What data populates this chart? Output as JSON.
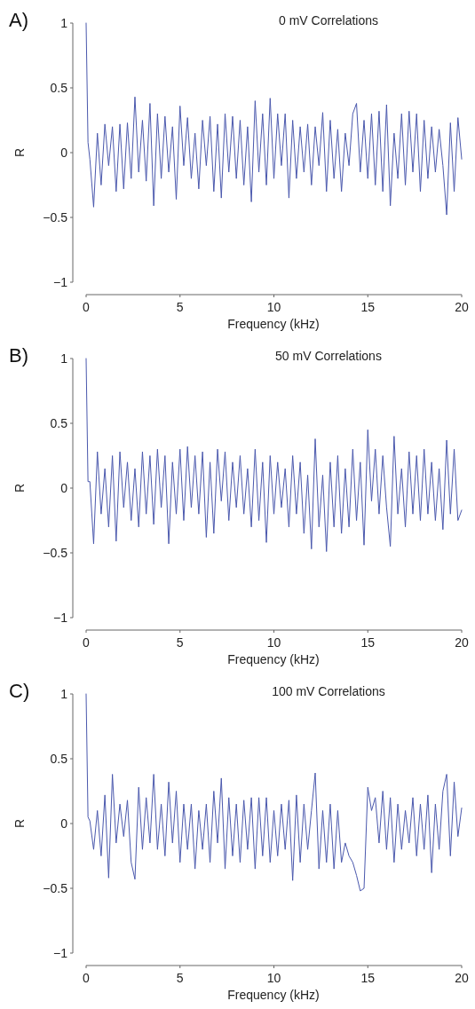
{
  "chart_data": [
    {
      "type": "line",
      "title": "0 mV Correlations",
      "xlabel": "Frequency (kHz)",
      "ylabel": "R",
      "annotations": [
        "A)"
      ],
      "x": [
        0,
        0.1,
        0.2,
        0.4,
        0.6,
        0.8,
        1,
        1.2,
        1.4,
        1.6,
        1.8,
        2,
        2.2,
        2.4,
        2.6,
        2.8,
        3,
        3.2,
        3.4,
        3.6,
        3.8,
        4,
        4.2,
        4.4,
        4.6,
        4.8,
        5,
        5.2,
        5.4,
        5.6,
        5.8,
        6,
        6.2,
        6.4,
        6.6,
        6.8,
        7,
        7.2,
        7.4,
        7.6,
        7.8,
        8,
        8.2,
        8.4,
        8.6,
        8.8,
        9,
        9.2,
        9.4,
        9.6,
        9.8,
        10,
        10.2,
        10.4,
        10.6,
        10.8,
        11,
        11.2,
        11.4,
        11.6,
        11.8,
        12,
        12.2,
        12.4,
        12.6,
        12.8,
        13,
        13.2,
        13.4,
        13.6,
        13.8,
        14,
        14.2,
        14.4,
        14.6,
        14.8,
        15,
        15.2,
        15.4,
        15.6,
        15.8,
        16,
        16.2,
        16.4,
        16.6,
        16.8,
        17,
        17.2,
        17.4,
        17.6,
        17.8,
        18,
        18.2,
        18.4,
        18.6,
        18.8,
        19,
        19.2,
        19.4,
        19.6,
        19.8,
        20
      ],
      "series": [
        {
          "color": "#4a58ad",
          "values": [
            1,
            0.08,
            -0.05,
            -0.42,
            0.15,
            -0.25,
            0.22,
            -0.1,
            0.2,
            -0.3,
            0.22,
            -0.28,
            0.23,
            -0.2,
            0.43,
            -0.15,
            0.25,
            -0.22,
            0.38,
            -0.41,
            0.3,
            -0.2,
            0.28,
            -0.15,
            0.2,
            -0.36,
            0.36,
            -0.1,
            0.27,
            -0.2,
            0.15,
            -0.28,
            0.25,
            -0.1,
            0.28,
            -0.3,
            0.22,
            -0.35,
            0.3,
            -0.15,
            0.28,
            -0.2,
            0.25,
            -0.25,
            0.2,
            -0.38,
            0.4,
            -0.15,
            0.3,
            -0.25,
            0.42,
            -0.2,
            0.3,
            -0.1,
            0.3,
            -0.35,
            0.25,
            -0.2,
            0.2,
            -0.15,
            0.22,
            -0.25,
            0.2,
            -0.1,
            0.31,
            -0.3,
            0.25,
            -0.2,
            0.18,
            -0.3,
            0.15,
            -0.1,
            0.3,
            0.38,
            -0.15,
            0.25,
            -0.2,
            0.3,
            -0.25,
            0.32,
            -0.3,
            0.37,
            -0.41,
            0.15,
            -0.2,
            0.3,
            -0.25,
            0.32,
            -0.15,
            0.3,
            -0.3,
            0.25,
            -0.2,
            0.2,
            -0.15,
            0.18,
            -0.1,
            -0.48,
            0.23,
            -0.3,
            0.27,
            -0.05
          ]
        }
      ],
      "xlim": [
        0,
        20
      ],
      "xticks": [
        0,
        5,
        10,
        15,
        20
      ],
      "ylim": [
        -1,
        1
      ],
      "yticks": [
        -1,
        -0.5,
        0,
        0.5,
        1
      ]
    },
    {
      "type": "line",
      "title": "50 mV Correlations",
      "xlabel": "Frequency (kHz)",
      "ylabel": "R",
      "annotations": [
        "B)"
      ],
      "x": [
        0,
        0.1,
        0.2,
        0.4,
        0.6,
        0.8,
        1,
        1.2,
        1.4,
        1.6,
        1.8,
        2,
        2.2,
        2.4,
        2.6,
        2.8,
        3,
        3.2,
        3.4,
        3.6,
        3.8,
        4,
        4.2,
        4.4,
        4.6,
        4.8,
        5,
        5.2,
        5.4,
        5.6,
        5.8,
        6,
        6.2,
        6.4,
        6.6,
        6.8,
        7,
        7.2,
        7.4,
        7.6,
        7.8,
        8,
        8.2,
        8.4,
        8.6,
        8.8,
        9,
        9.2,
        9.4,
        9.6,
        9.8,
        10,
        10.2,
        10.4,
        10.6,
        10.8,
        11,
        11.2,
        11.4,
        11.6,
        11.8,
        12,
        12.2,
        12.4,
        12.6,
        12.8,
        13,
        13.2,
        13.4,
        13.6,
        13.8,
        14,
        14.2,
        14.4,
        14.6,
        14.8,
        15,
        15.2,
        15.4,
        15.6,
        15.8,
        16,
        16.2,
        16.4,
        16.6,
        16.8,
        17,
        17.2,
        17.4,
        17.6,
        17.8,
        18,
        18.2,
        18.4,
        18.6,
        18.8,
        19,
        19.2,
        19.4,
        19.6,
        19.8,
        20
      ],
      "series": [
        {
          "color": "#4a58ad",
          "values": [
            1,
            0.05,
            0.05,
            -0.43,
            0.28,
            -0.2,
            0.15,
            -0.3,
            0.25,
            -0.41,
            0.28,
            -0.15,
            0.2,
            -0.25,
            0.15,
            -0.3,
            0.28,
            -0.2,
            0.25,
            -0.28,
            0.3,
            -0.15,
            0.25,
            -0.43,
            0.2,
            -0.2,
            0.3,
            -0.25,
            0.32,
            -0.15,
            0.25,
            -0.2,
            0.28,
            -0.38,
            0.2,
            -0.35,
            0.3,
            -0.1,
            0.28,
            -0.25,
            0.2,
            -0.15,
            0.25,
            -0.2,
            0.15,
            -0.3,
            0.3,
            -0.25,
            0.2,
            -0.42,
            0.25,
            -0.2,
            0.2,
            -0.15,
            0.15,
            -0.3,
            0.25,
            -0.2,
            0.2,
            -0.35,
            0.1,
            -0.47,
            0.38,
            -0.3,
            0.1,
            -0.49,
            0.2,
            -0.3,
            0.25,
            -0.35,
            0.15,
            -0.3,
            0.3,
            -0.25,
            0.2,
            -0.44,
            0.45,
            -0.1,
            0.3,
            -0.2,
            0.25,
            -0.15,
            -0.45,
            0.4,
            -0.2,
            0.15,
            -0.3,
            0.28,
            -0.2,
            0.25,
            -0.25,
            0.3,
            -0.2,
            0.2,
            -0.25,
            0.15,
            -0.32,
            0.37,
            -0.2,
            0.3,
            -0.25,
            -0.17
          ]
        }
      ],
      "xlim": [
        0,
        20
      ],
      "xticks": [
        0,
        5,
        10,
        15,
        20
      ],
      "ylim": [
        -1,
        1
      ],
      "yticks": [
        -1,
        -0.5,
        0,
        0.5,
        1
      ]
    },
    {
      "type": "line",
      "title": "100 mV Correlations",
      "xlabel": "Frequency (kHz)",
      "ylabel": "R",
      "annotations": [
        "C)"
      ],
      "x": [
        0,
        0.1,
        0.2,
        0.4,
        0.6,
        0.8,
        1,
        1.2,
        1.4,
        1.6,
        1.8,
        2,
        2.2,
        2.4,
        2.6,
        2.8,
        3,
        3.2,
        3.4,
        3.6,
        3.8,
        4,
        4.2,
        4.4,
        4.6,
        4.8,
        5,
        5.2,
        5.4,
        5.6,
        5.8,
        6,
        6.2,
        6.4,
        6.6,
        6.8,
        7,
        7.2,
        7.4,
        7.6,
        7.8,
        8,
        8.2,
        8.4,
        8.6,
        8.8,
        9,
        9.2,
        9.4,
        9.6,
        9.8,
        10,
        10.2,
        10.4,
        10.6,
        10.8,
        11,
        11.2,
        11.4,
        11.6,
        11.8,
        12,
        12.2,
        12.4,
        12.6,
        12.8,
        13,
        13.2,
        13.4,
        13.6,
        13.8,
        14,
        14.2,
        14.4,
        14.6,
        14.8,
        15,
        15.2,
        15.4,
        15.6,
        15.8,
        16,
        16.2,
        16.4,
        16.6,
        16.8,
        17,
        17.2,
        17.4,
        17.6,
        17.8,
        18,
        18.2,
        18.4,
        18.6,
        18.8,
        19,
        19.2,
        19.4,
        19.6,
        19.8,
        20
      ],
      "series": [
        {
          "color": "#4a58ad",
          "values": [
            1,
            0.05,
            0.02,
            -0.2,
            0.1,
            -0.25,
            0.22,
            -0.42,
            0.38,
            -0.15,
            0.15,
            -0.1,
            0.18,
            -0.3,
            -0.43,
            0.28,
            -0.2,
            0.2,
            -0.15,
            0.38,
            -0.2,
            0.15,
            -0.25,
            0.32,
            -0.15,
            0.25,
            -0.3,
            0.15,
            -0.2,
            0.15,
            -0.35,
            0.1,
            -0.2,
            0.15,
            -0.3,
            0.25,
            -0.15,
            0.35,
            -0.35,
            0.2,
            -0.25,
            0.15,
            -0.3,
            0.18,
            -0.2,
            0.2,
            -0.35,
            0.2,
            -0.25,
            0.2,
            -0.3,
            0.1,
            -0.25,
            0.15,
            -0.2,
            0.18,
            -0.44,
            0.22,
            -0.3,
            0.15,
            -0.2,
            0.1,
            0.39,
            -0.35,
            0.1,
            -0.3,
            0.15,
            -0.35,
            0.1,
            -0.3,
            -0.15,
            -0.25,
            -0.3,
            -0.4,
            -0.52,
            -0.5,
            0.28,
            0.1,
            0.2,
            -0.15,
            0.25,
            -0.2,
            0.2,
            -0.3,
            0.15,
            -0.2,
            0.1,
            -0.15,
            0.2,
            -0.25,
            0.15,
            -0.2,
            0.22,
            -0.38,
            0.15,
            -0.2,
            0.25,
            0.38,
            -0.25,
            0.32,
            -0.1,
            0.12
          ]
        }
      ],
      "xlim": [
        0,
        20
      ],
      "xticks": [
        0,
        5,
        10,
        15,
        20
      ],
      "ylim": [
        -1,
        1
      ],
      "yticks": [
        -1,
        -0.5,
        0,
        0.5,
        1
      ]
    }
  ]
}
